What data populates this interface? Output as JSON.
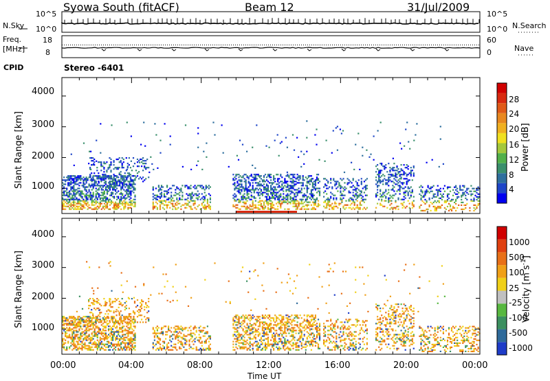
{
  "header": {
    "station": "Syowa South (fitACF)",
    "beam": "Beam 12",
    "date": "31/Jul/2009"
  },
  "top_panels": {
    "nsky": {
      "label": "N.Sky",
      "ticks": [
        "10^5",
        "10^0"
      ]
    },
    "nsearch": {
      "label": "N.Search",
      "ticks": [
        "10^5",
        "10^0"
      ]
    },
    "freq": {
      "label_line1": "Freq.",
      "label_line2": "[MHz]",
      "ticks": [
        "18",
        "8"
      ]
    },
    "nave": {
      "label": "Nave",
      "ticks": [
        "60",
        "0"
      ]
    },
    "cpid": {
      "label": "CPID",
      "value": "Stereo -6401"
    }
  },
  "chart_data": [
    {
      "type": "heatmap",
      "title": "Power [dB]",
      "xlabel": "Time UT",
      "ylabel": "Slant Range [km]",
      "xlim": [
        0,
        24
      ],
      "ylim": [
        180,
        4600
      ],
      "y_ticks": [
        "4000",
        "3000",
        "2000",
        "1000"
      ],
      "colorbar": {
        "label": "Power [dB]",
        "range": [
          0,
          32
        ],
        "ticks": [
          "28",
          "24",
          "20",
          "16",
          "12",
          "8",
          "4"
        ],
        "colors": [
          "#0000f0",
          "#1e46c8",
          "#2e6f9e",
          "#3a8f6c",
          "#52b04a",
          "#a4c83c",
          "#f0e020",
          "#f0b020",
          "#e88820",
          "#e05a18",
          "#d82a10",
          "#d00000"
        ]
      }
    },
    {
      "type": "heatmap",
      "title": "Velocity [m s-1]",
      "xlabel": "Time UT",
      "ylabel": "Slant Range [km]",
      "xlim": [
        0,
        24
      ],
      "ylim": [
        180,
        4600
      ],
      "y_ticks": [
        "4000",
        "3000",
        "2000",
        "1000"
      ],
      "colorbar": {
        "label": "Velocity [m s",
        "label_sup": "-1",
        "label_end": "]",
        "ticks": [
          "1000",
          "500",
          "100",
          "25",
          "-25",
          "-100",
          "-500",
          "-1000"
        ],
        "colors": [
          "#1e3cc8",
          "#2e6a9a",
          "#3c9060",
          "#58b840",
          "#c0c0c0",
          "#f0d018",
          "#f0a018",
          "#e87018",
          "#e04010",
          "#d00000"
        ]
      }
    }
  ],
  "x_ticks": [
    "00:00",
    "04:00",
    "08:00",
    "12:00",
    "16:00",
    "20:00",
    "00:00"
  ],
  "xlabel": "Time UT"
}
